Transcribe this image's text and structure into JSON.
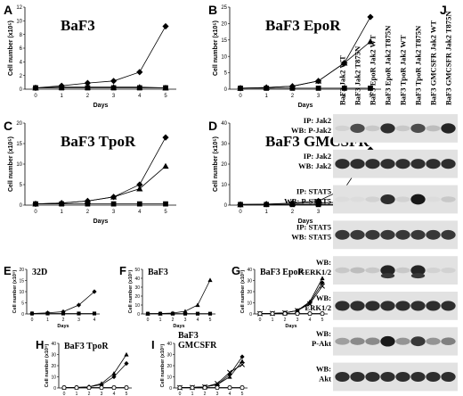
{
  "panels": {
    "A": {
      "letter": "A",
      "title": "BaF3",
      "ylabel": "Cell number (x10⁵)",
      "xlabel": "Days",
      "yticks": [
        "0",
        "2",
        "4",
        "6",
        "8",
        "10",
        "12"
      ],
      "xticks": [
        "0",
        "1",
        "2",
        "3",
        "4",
        "5"
      ]
    },
    "B": {
      "letter": "B",
      "title": "BaF3 EpoR",
      "ylabel": "Cell number (x10⁵)",
      "xlabel": "Days",
      "yticks": [
        "0",
        "5",
        "10",
        "15",
        "20",
        "25"
      ],
      "xticks": [
        "0",
        "1",
        "2",
        "3",
        "4",
        "5"
      ]
    },
    "C": {
      "letter": "C",
      "title": "BaF3 TpoR",
      "ylabel": "Cell number (x10⁵)",
      "xlabel": "Days",
      "yticks": [
        "0",
        "5",
        "10",
        "15",
        "20"
      ],
      "xticks": [
        "0",
        "1",
        "2",
        "3",
        "4",
        "5"
      ]
    },
    "D": {
      "letter": "D",
      "title": "BaF3 GMCSFR",
      "ylabel": "Cell number (x10⁵)",
      "xlabel": "Days",
      "yticks": [
        "0",
        "10",
        "20",
        "30",
        "40"
      ],
      "xticks": [
        "0",
        "1",
        "2",
        "3",
        "4",
        "5"
      ]
    },
    "E": {
      "letter": "E",
      "title": "32D",
      "ylabel": "Cell number (x10⁵)",
      "xlabel": "Days",
      "yticks": [
        "0",
        "5",
        "10",
        "15",
        "20"
      ],
      "xticks": [
        "0",
        "1",
        "2",
        "3",
        "4"
      ]
    },
    "F": {
      "letter": "F",
      "title": "BaF3",
      "ylabel": "Cell number (x10⁵)",
      "xlabel": "Days",
      "yticks": [
        "0",
        "10",
        "20",
        "30",
        "40",
        "50"
      ],
      "xticks": [
        "0",
        "1",
        "2",
        "3",
        "4",
        "5"
      ]
    },
    "G": {
      "letter": "G",
      "title": "BaF3 EpoR",
      "ylabel": "Cell number (x10⁵)",
      "xlabel": "Days",
      "yticks": [
        "0",
        "10",
        "20",
        "30",
        "40"
      ],
      "xticks": [
        "0",
        "1",
        "2",
        "3",
        "4",
        "5"
      ]
    },
    "H": {
      "letter": "H",
      "title": "BaF3 TpoR",
      "ylabel": "Cell number (x10⁵)",
      "xlabel": "Days",
      "yticks": [
        "0",
        "10",
        "20",
        "30",
        "40"
      ],
      "xticks": [
        "0",
        "1",
        "2",
        "3",
        "4",
        "5"
      ]
    },
    "I": {
      "letter": "I",
      "title": "BaF3",
      "title2": "GMCSFR",
      "ylabel": "Cell number (x10⁵)",
      "xlabel": "Days",
      "yticks": [
        "0",
        "10",
        "20",
        "30",
        "40"
      ],
      "xticks": [
        "0",
        "1",
        "2",
        "3",
        "4",
        "5"
      ]
    }
  },
  "blot": {
    "letter": "J",
    "lanes": [
      "BaF3 Jak2 WT",
      "BaF3 Jak2 T875N",
      "BaF3 EpoR Jak2 WT",
      "BaF3 EpoR Jak2 T875N",
      "BaF3 TpoR Jak2 WT",
      "BaF3 TpoR Jak2 T875N",
      "BaF3 GMCSFR Jak2 WT",
      "BaF3 GMCSFR Jak2 T875N"
    ],
    "rows": [
      {
        "l1": "IP: Jak2",
        "l2": "WB: P-Jak2",
        "intensity": [
          0.05,
          0.7,
          0.1,
          0.85,
          0.1,
          0.7,
          0.15,
          0.9
        ]
      },
      {
        "l1": "IP: Jak2",
        "l2": "WB: Jak2",
        "intensity": [
          0.85,
          0.85,
          0.85,
          0.85,
          0.85,
          0.85,
          0.85,
          0.85
        ]
      },
      {
        "l1": "IP: STAT5",
        "l2": "WB: P-STAT5",
        "intensity": [
          0,
          0,
          0.05,
          0.85,
          0.05,
          0.95,
          0,
          0.1
        ]
      },
      {
        "l1": "IP: STAT5",
        "l2": "WB: STAT5",
        "intensity": [
          0.8,
          0.8,
          0.8,
          0.8,
          0.8,
          0.8,
          0.8,
          0.8
        ]
      },
      {
        "l1": "WB:",
        "l2": "P-ERK1/2",
        "intensity": [
          0.1,
          0.15,
          0.1,
          0.9,
          0.1,
          0.9,
          0.05,
          0.05
        ]
      },
      {
        "l1": "WB:",
        "l2": "ERK1/2",
        "intensity": [
          0.85,
          0.85,
          0.85,
          0.85,
          0.85,
          0.85,
          0.85,
          0.85
        ]
      },
      {
        "l1": "WB:",
        "l2": "P-Akt",
        "intensity": [
          0.3,
          0.4,
          0.4,
          0.95,
          0.35,
          0.8,
          0.35,
          0.45
        ]
      },
      {
        "l1": "WB:",
        "l2": "Akt",
        "intensity": [
          0.85,
          0.85,
          0.85,
          0.85,
          0.85,
          0.85,
          0.85,
          0.85
        ]
      }
    ]
  },
  "chart_data": [
    {
      "panel": "A",
      "type": "line",
      "title": "BaF3",
      "xlabel": "Days",
      "ylabel": "Cell number (x10⁵)",
      "x": [
        0,
        1,
        2,
        3,
        4,
        5
      ],
      "ylim": [
        0,
        12
      ],
      "series": [
        {
          "marker": "diamond",
          "values": [
            0.2,
            0.5,
            0.9,
            1.2,
            2.5,
            9.2
          ]
        },
        {
          "marker": "triangle",
          "values": [
            0.2,
            0.3,
            0.3,
            0.3,
            0.3,
            0.2
          ]
        },
        {
          "marker": "square",
          "values": [
            0.2,
            0.2,
            0.2,
            0.2,
            0.2,
            0.2
          ]
        }
      ]
    },
    {
      "panel": "B",
      "type": "line",
      "title": "BaF3 EpoR",
      "xlabel": "Days",
      "ylabel": "Cell number (x10⁵)",
      "x": [
        0,
        1,
        2,
        3,
        4,
        5
      ],
      "ylim": [
        0,
        25
      ],
      "series": [
        {
          "marker": "diamond",
          "values": [
            0.3,
            0.5,
            0.9,
            2.5,
            8,
            22
          ]
        },
        {
          "marker": "triangle",
          "values": [
            0.3,
            0.5,
            0.9,
            2.5,
            8,
            14.5
          ]
        },
        {
          "marker": "square",
          "values": [
            0.3,
            0.3,
            0.3,
            0.3,
            0.3,
            0.3
          ]
        }
      ]
    },
    {
      "panel": "C",
      "type": "line",
      "title": "BaF3 TpoR",
      "xlabel": "Days",
      "ylabel": "Cell number (x10⁵)",
      "x": [
        0,
        1,
        2,
        3,
        4,
        5
      ],
      "ylim": [
        0,
        20
      ],
      "series": [
        {
          "marker": "diamond",
          "values": [
            0.3,
            0.5,
            1,
            2,
            5,
            16.5
          ]
        },
        {
          "marker": "triangle",
          "values": [
            0.3,
            0.5,
            1,
            2,
            4,
            9.5
          ]
        },
        {
          "marker": "square",
          "values": [
            0.3,
            0.3,
            0.3,
            0.3,
            0.3,
            0.3
          ]
        }
      ]
    },
    {
      "panel": "D",
      "type": "line",
      "title": "BaF3 GMCSFR",
      "xlabel": "Days",
      "ylabel": "Cell number (x10⁵)",
      "x": [
        0,
        1,
        2,
        3,
        4,
        5
      ],
      "ylim": [
        0,
        40
      ],
      "series": [
        {
          "marker": "diamond",
          "values": [
            0.3,
            0.5,
            1,
            2,
            8,
            27
          ]
        },
        {
          "marker": "triangle",
          "values": [
            0.3,
            0.5,
            0.8,
            1,
            1.5,
            2
          ]
        },
        {
          "marker": "square",
          "values": [
            0.3,
            0.3,
            0.3,
            0.3,
            0.3,
            0.3
          ]
        }
      ]
    },
    {
      "panel": "E",
      "type": "line",
      "title": "32D",
      "xlabel": "Days",
      "ylabel": "Cell number (x10⁵)",
      "x": [
        0,
        1,
        2,
        3,
        4
      ],
      "ylim": [
        0,
        20
      ],
      "series": [
        {
          "marker": "diamond",
          "values": [
            0.2,
            0.5,
            1,
            4,
            10
          ]
        },
        {
          "marker": "square",
          "values": [
            0.2,
            0.2,
            0.2,
            0.2,
            0.2
          ]
        }
      ]
    },
    {
      "panel": "F",
      "type": "line",
      "title": "BaF3",
      "xlabel": "Days",
      "ylabel": "Cell number (x10⁵)",
      "x": [
        0,
        1,
        2,
        3,
        4,
        5
      ],
      "ylim": [
        0,
        50
      ],
      "series": [
        {
          "marker": "triangle",
          "values": [
            0.3,
            0.5,
            1,
            3,
            10,
            38
          ]
        },
        {
          "marker": "square",
          "values": [
            0.3,
            0.3,
            0.3,
            0.3,
            0.3,
            0.3
          ]
        }
      ]
    },
    {
      "panel": "G",
      "type": "line",
      "title": "BaF3 EpoR",
      "xlabel": "Days",
      "ylabel": "Cell number (x10⁵)",
      "x": [
        0,
        1,
        2,
        3,
        4,
        5
      ],
      "ylim": [
        0,
        40
      ],
      "series": [
        {
          "marker": "diamond",
          "values": [
            0.3,
            0.5,
            1,
            3,
            10,
            28
          ]
        },
        {
          "marker": "triangle",
          "values": [
            0.3,
            0.5,
            1,
            3,
            11,
            32
          ]
        },
        {
          "marker": "x",
          "values": [
            0.3,
            0.5,
            1,
            3,
            9,
            25
          ]
        },
        {
          "marker": "square",
          "values": [
            0.3,
            0.3,
            0.3,
            0.3,
            0.3,
            0.3
          ]
        },
        {
          "marker": "circle",
          "values": [
            0.3,
            0.3,
            0.3,
            0.3,
            0.3,
            0.3
          ]
        }
      ]
    },
    {
      "panel": "H",
      "type": "line",
      "title": "BaF3 TpoR",
      "xlabel": "Days",
      "ylabel": "Cell number (x10⁵)",
      "x": [
        0,
        1,
        2,
        3,
        4,
        5
      ],
      "ylim": [
        0,
        40
      ],
      "series": [
        {
          "marker": "diamond",
          "values": [
            0.3,
            0.5,
            1,
            3,
            10,
            22
          ]
        },
        {
          "marker": "triangle",
          "values": [
            0.3,
            0.5,
            1,
            4,
            13,
            30
          ]
        },
        {
          "marker": "square",
          "values": [
            0.3,
            0.3,
            0.3,
            0.3,
            0.3,
            0.3
          ]
        },
        {
          "marker": "circle",
          "values": [
            0.3,
            0.3,
            0.3,
            0.3,
            0.3,
            0.3
          ]
        }
      ]
    },
    {
      "panel": "I",
      "type": "line",
      "title": "BaF3 GMCSFR",
      "xlabel": "Days",
      "ylabel": "Cell number (x10⁵)",
      "x": [
        0,
        1,
        2,
        3,
        4,
        5
      ],
      "ylim": [
        0,
        40
      ],
      "series": [
        {
          "marker": "diamond",
          "values": [
            0.3,
            0.5,
            1,
            3,
            12,
            28
          ]
        },
        {
          "marker": "triangle",
          "values": [
            0.3,
            0.5,
            1,
            3,
            10,
            24
          ]
        },
        {
          "marker": "x",
          "values": [
            0.3,
            0.5,
            1,
            4,
            14,
            21
          ]
        },
        {
          "marker": "square",
          "values": [
            0.3,
            0.3,
            0.3,
            0.3,
            0.3,
            0.3
          ]
        },
        {
          "marker": "circle",
          "values": [
            0.3,
            0.3,
            0.3,
            0.3,
            0.3,
            0.3
          ]
        }
      ]
    }
  ]
}
